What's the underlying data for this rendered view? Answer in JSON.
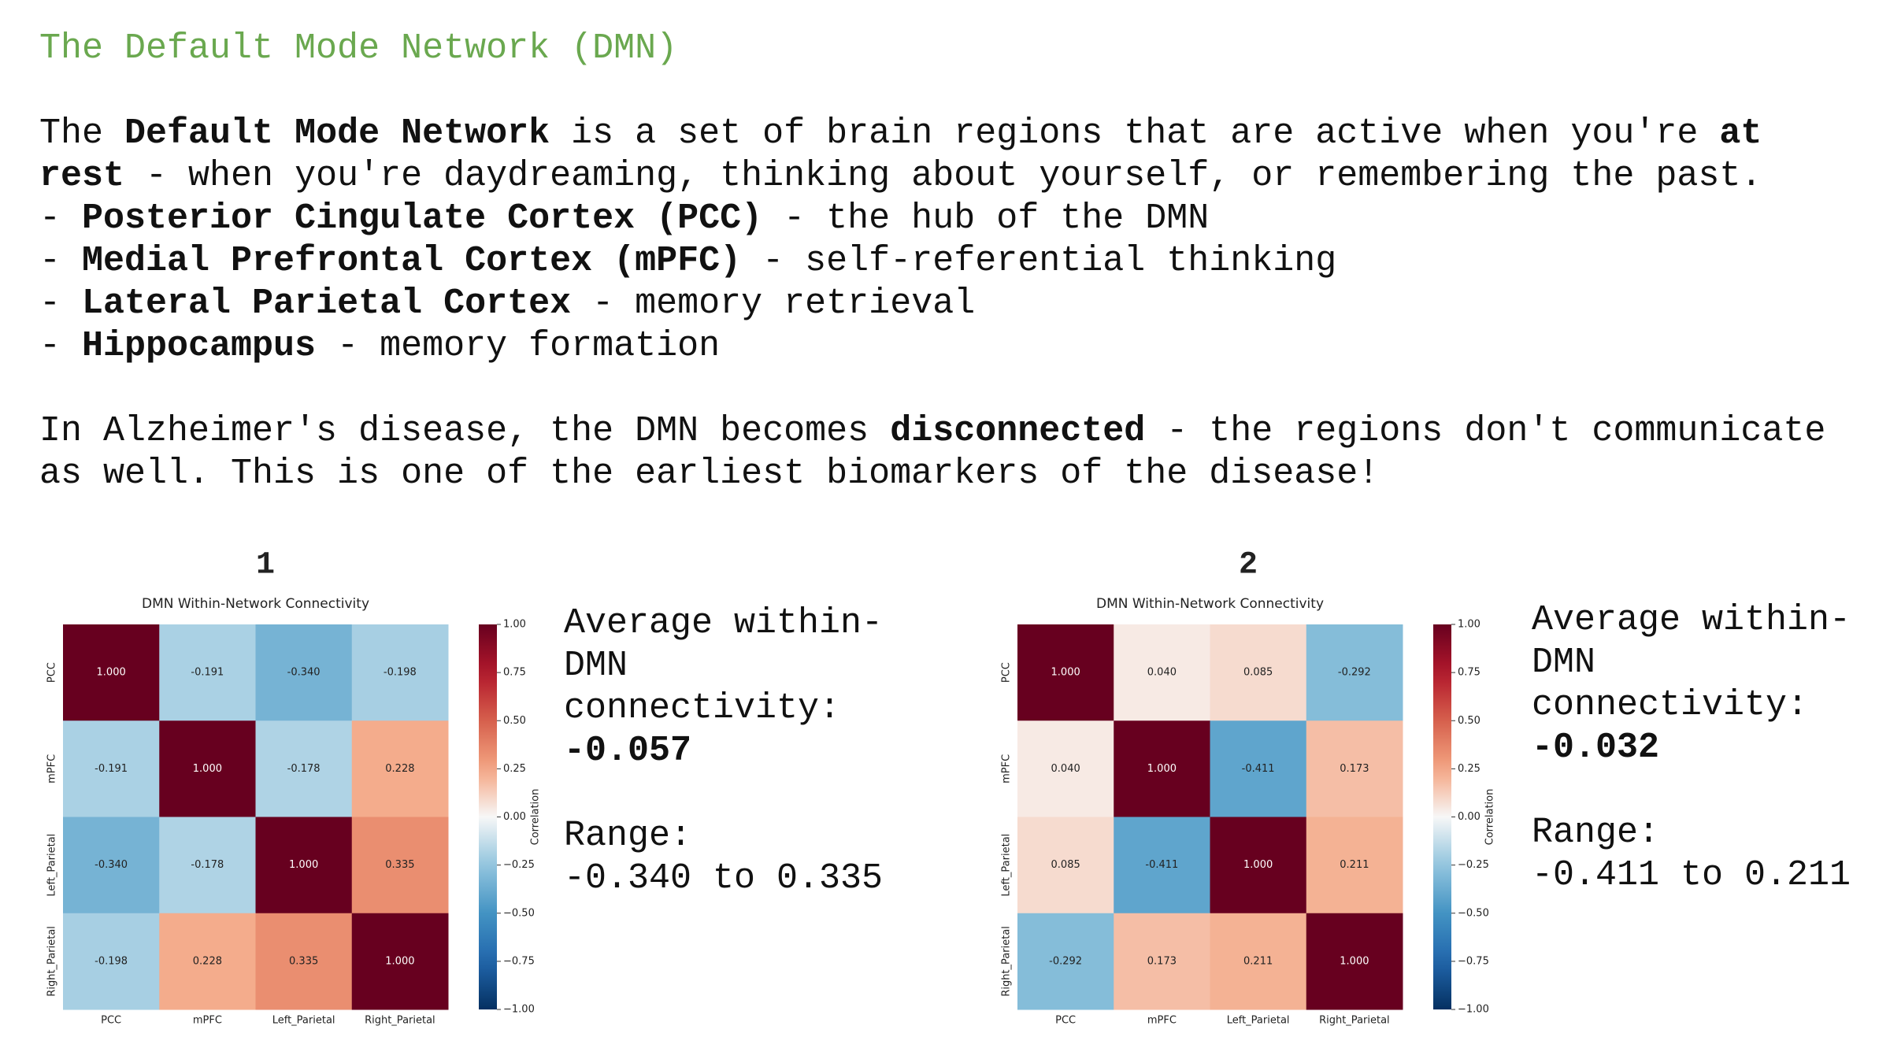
{
  "header": {
    "title": "The Default Mode Network (DMN)"
  },
  "intro": [
    {
      "text": "The ",
      "bold": false
    },
    {
      "text": "Default Mode Network",
      "bold": true
    },
    {
      "text": " is a set of brain regions that are active when you're ",
      "bold": false
    },
    {
      "text": "at rest",
      "bold": true
    },
    {
      "text": " - when you're daydreaming, thinking about yourself, or remembering the past.",
      "bold": false
    }
  ],
  "bullets": [
    [
      {
        "text": "- ",
        "bold": false
      },
      {
        "text": "Posterior Cingulate Cortex (PCC)",
        "bold": true
      },
      {
        "text": " - the hub of the DMN",
        "bold": false
      }
    ],
    [
      {
        "text": "- ",
        "bold": false
      },
      {
        "text": "Medial Prefrontal Cortex (mPFC)",
        "bold": true
      },
      {
        "text": " - self-referential thinking",
        "bold": false
      }
    ],
    [
      {
        "text": "- ",
        "bold": false
      },
      {
        "text": "Lateral Parietal Cortex",
        "bold": true
      },
      {
        "text": " - memory retrieval",
        "bold": false
      }
    ],
    [
      {
        "text": "- ",
        "bold": false
      },
      {
        "text": "Hippocampus",
        "bold": true
      },
      {
        "text": " - memory formation",
        "bold": false
      }
    ]
  ],
  "note": [
    {
      "text": "In Alzheimer's disease, the DMN becomes ",
      "bold": false
    },
    {
      "text": "disconnected",
      "bold": true
    },
    {
      "text": " - the regions don't communicate as well. This is one of the earliest biomarkers of the disease!",
      "bold": false
    }
  ],
  "panels": [
    {
      "label": "1",
      "average_label": "Average within-DMN connectivity:",
      "average": "-0.057",
      "range_label": "Range:",
      "range": "-0.340 to 0.335"
    },
    {
      "label": "2",
      "average_label": "Average within-DMN connectivity:",
      "average": "-0.032",
      "range_label": "Range:",
      "range": "-0.411 to 0.211"
    }
  ],
  "chart_data": [
    {
      "type": "heatmap",
      "title": "DMN Within-Network Connectivity",
      "colormap": "RdBu_r",
      "categories": [
        "PCC",
        "mPFC",
        "Left_Parietal",
        "Right_Parietal"
      ],
      "values": [
        [
          1,
          -0.191,
          -0.34,
          -0.198
        ],
        [
          -0.191,
          1,
          -0.178,
          0.228
        ],
        [
          -0.34,
          -0.178,
          1,
          0.335
        ],
        [
          -0.198,
          0.228,
          0.335,
          1
        ]
      ],
      "value_labels": [
        [
          "1.000",
          "-0.191",
          "-0.340",
          "-0.198"
        ],
        [
          "-0.191",
          "1.000",
          "-0.178",
          "0.228"
        ],
        [
          "-0.340",
          "-0.178",
          "1.000",
          "0.335"
        ],
        [
          "-0.198",
          "0.228",
          "0.335",
          "1.000"
        ]
      ],
      "colorbar_label": "Correlation",
      "zlim": [
        -1,
        1
      ],
      "zticks": [
        {
          "value": 1,
          "label": "1.00"
        },
        {
          "value": 0.75,
          "label": "0.75"
        },
        {
          "value": 0.5,
          "label": "0.50"
        },
        {
          "value": 0.25,
          "label": "0.25"
        },
        {
          "value": 0,
          "label": "0.00"
        },
        {
          "value": -0.25,
          "label": "−0.25"
        },
        {
          "value": -0.5,
          "label": "−0.50"
        },
        {
          "value": -0.75,
          "label": "−0.75"
        },
        {
          "value": -1,
          "label": "−1.00"
        }
      ]
    },
    {
      "type": "heatmap",
      "title": "DMN Within-Network Connectivity",
      "colormap": "RdBu_r",
      "categories": [
        "PCC",
        "mPFC",
        "Left_Parietal",
        "Right_Parietal"
      ],
      "values": [
        [
          1,
          0.04,
          0.085,
          -0.292
        ],
        [
          0.04,
          1,
          -0.411,
          0.173
        ],
        [
          0.085,
          -0.411,
          1,
          0.211
        ],
        [
          -0.292,
          0.173,
          0.211,
          1
        ]
      ],
      "value_labels": [
        [
          "1.000",
          "0.040",
          "0.085",
          "-0.292"
        ],
        [
          "0.040",
          "1.000",
          "-0.411",
          "0.173"
        ],
        [
          "0.085",
          "-0.411",
          "1.000",
          "0.211"
        ],
        [
          "-0.292",
          "0.173",
          "0.211",
          "1.000"
        ]
      ],
      "colorbar_label": "Correlation",
      "zlim": [
        -1,
        1
      ],
      "zticks": [
        {
          "value": 1,
          "label": "1.00"
        },
        {
          "value": 0.75,
          "label": "0.75"
        },
        {
          "value": 0.5,
          "label": "0.50"
        },
        {
          "value": 0.25,
          "label": "0.25"
        },
        {
          "value": 0,
          "label": "0.00"
        },
        {
          "value": -0.25,
          "label": "−0.25"
        },
        {
          "value": -0.5,
          "label": "−0.50"
        },
        {
          "value": -0.75,
          "label": "−0.75"
        },
        {
          "value": -1,
          "label": "−1.00"
        }
      ]
    }
  ]
}
